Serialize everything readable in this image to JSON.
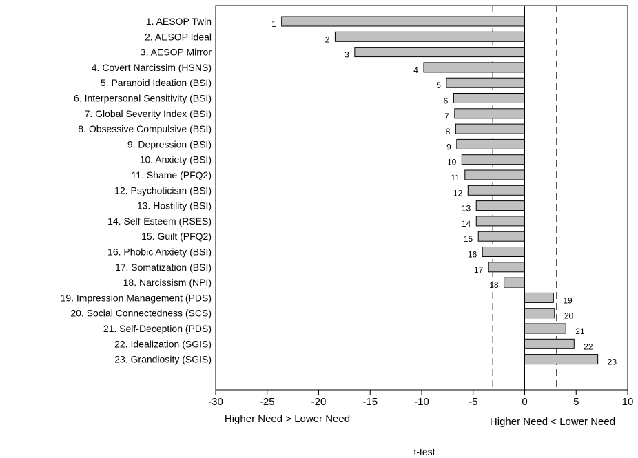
{
  "chart_data": {
    "type": "bar",
    "orientation": "horizontal",
    "categories": [
      "1. AESOP Twin",
      "2. AESOP Ideal",
      "3. AESOP Mirror",
      "4. Covert Narcissim (HSNS)",
      "5. Paranoid Ideation (BSI)",
      "6. Interpersonal Sensitivity (BSI)",
      "7. Global Severity Index (BSI)",
      "8. Obsessive Compulsive (BSI)",
      "9. Depression (BSI)",
      "10. Anxiety (BSI)",
      "11. Shame (PFQ2)",
      "12. Psychoticism (BSI)",
      "13. Hostility (BSI)",
      "14. Self-Esteem (RSES)",
      "15. Guilt (PFQ2)",
      "16. Phobic Anxiety (BSI)",
      "17. Somatization (BSI)",
      "18. Narcissism (NPI)",
      "19. Impression Management (PDS)",
      "20. Social Connectedness (SCS)",
      "21. Self-Deception (PDS)",
      "22. Idealization (SGIS)",
      "23. Grandiosity (SGIS)"
    ],
    "bar_labels": [
      "1",
      "2",
      "3",
      "4",
      "5",
      "6",
      "7",
      "8",
      "9",
      "10",
      "11",
      "12",
      "13",
      "14",
      "15",
      "16",
      "17",
      "18",
      "19",
      "20",
      "21",
      "22",
      "23"
    ],
    "values": [
      -23.6,
      -18.4,
      -16.5,
      -9.8,
      -7.6,
      -6.9,
      -6.8,
      -6.7,
      -6.6,
      -6.1,
      -5.8,
      -5.5,
      -4.7,
      -4.7,
      -4.5,
      -4.1,
      -3.5,
      -2.0,
      2.8,
      2.9,
      4.0,
      4.8,
      7.1
    ],
    "xlim": [
      -30,
      10
    ],
    "xticks": [
      "-30",
      "-25",
      "-20",
      "-15",
      "-10",
      "-5",
      "0",
      "5",
      "10"
    ],
    "xtick_values": [
      -30,
      -25,
      -20,
      -15,
      -10,
      -5,
      0,
      5,
      10
    ],
    "reference_lines": [
      -3.1,
      3.1
    ],
    "xlabel": "t-test",
    "annotations": {
      "left": "Higher Need > Lower Need",
      "right": "Higher Need < Lower Need"
    },
    "colors": {
      "bar_fill": "#c0c0c0",
      "bar_stroke": "#000000"
    },
    "grid": false
  }
}
